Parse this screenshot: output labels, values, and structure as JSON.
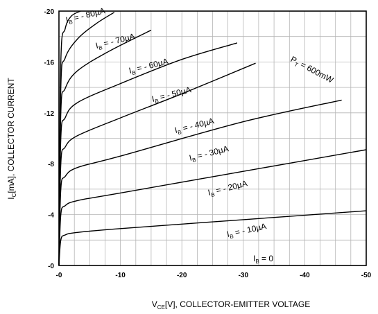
{
  "chart_data": {
    "type": "line",
    "xlabel": {
      "main": "V",
      "sub": "CE",
      "rest": "[V], COLLECTOR-EMITTER VOLTAGE"
    },
    "ylabel": {
      "main": "I",
      "sub": "C",
      "rest": "[mA], COLLECTOR CURRENT"
    },
    "xlim": [
      0,
      -50
    ],
    "ylim": [
      0,
      -20
    ],
    "x_ticks": [
      {
        "value": 0,
        "label": "-0"
      },
      {
        "value": -10,
        "label": "-10"
      },
      {
        "value": -20,
        "label": "-20"
      },
      {
        "value": -30,
        "label": "-30"
      },
      {
        "value": -40,
        "label": "-40"
      },
      {
        "value": -50,
        "label": "-50"
      }
    ],
    "y_ticks": [
      {
        "value": 0,
        "label": "-0"
      },
      {
        "value": -4,
        "label": "-4"
      },
      {
        "value": -8,
        "label": "-8"
      },
      {
        "value": -12,
        "label": "-12"
      },
      {
        "value": -16,
        "label": "-16"
      },
      {
        "value": -20,
        "label": "-20"
      }
    ],
    "grid": true,
    "series": [
      {
        "ib": -10,
        "label_pre": "I",
        "label_sub": "B",
        "label_post": " = - 10µA",
        "x": [
          0,
          -0.3,
          -1,
          -3,
          -10,
          -30,
          -50
        ],
        "y": [
          0,
          -2.0,
          -2.4,
          -2.6,
          -2.9,
          -3.6,
          -4.3
        ]
      },
      {
        "ib": -20,
        "label_pre": "I",
        "label_sub": "B",
        "label_post": " = - 20µA",
        "x": [
          0,
          -0.3,
          -1,
          -3,
          -10,
          -30,
          -50
        ],
        "y": [
          0,
          -4.0,
          -4.7,
          -5.1,
          -5.7,
          -7.4,
          -9.1
        ]
      },
      {
        "ib": -30,
        "label_pre": "I",
        "label_sub": "B",
        "label_post": " = - 30µA",
        "x": [
          0,
          -0.3,
          -1,
          -3,
          -10,
          -30,
          -46
        ],
        "y": [
          0,
          -6.0,
          -7.0,
          -7.7,
          -8.6,
          -11.3,
          -13.0
        ]
      },
      {
        "ib": -40,
        "label_pre": "I",
        "label_sub": "B",
        "label_post": " = - 40µA",
        "x": [
          0,
          -0.3,
          -1,
          -3,
          -10,
          -20,
          -32
        ],
        "y": [
          0,
          -8.0,
          -9.3,
          -10.2,
          -11.6,
          -13.5,
          -15.9
        ]
      },
      {
        "ib": -50,
        "label_pre": "I",
        "label_sub": "B",
        "label_post": " = - 50µA",
        "x": [
          0,
          -0.3,
          -1,
          -3,
          -10,
          -20,
          -29
        ],
        "y": [
          0,
          -10.0,
          -11.6,
          -12.8,
          -14.3,
          -16.2,
          -17.5
        ]
      },
      {
        "ib": -60,
        "label_pre": "I",
        "label_sub": "B",
        "label_post": " = - 60µA",
        "x": [
          0,
          -0.3,
          -1,
          -3,
          -8,
          -15
        ],
        "y": [
          0,
          -12.0,
          -13.9,
          -15.3,
          -16.8,
          -18.5
        ]
      },
      {
        "ib": -70,
        "label_pre": "I",
        "label_sub": "B",
        "label_post": " = - 70µA",
        "x": [
          0,
          -0.3,
          -1,
          -3,
          -6,
          -9
        ],
        "y": [
          0,
          -14.0,
          -16.3,
          -17.8,
          -19.0,
          -19.9
        ]
      },
      {
        "ib": -80,
        "label_pre": "I",
        "label_sub": "B",
        "label_post": " = - 80µA",
        "x": [
          0,
          -0.3,
          -1,
          -2,
          -3.5
        ],
        "y": [
          0,
          -16.0,
          -18.6,
          -19.6,
          -20.0
        ]
      }
    ],
    "zero_label": {
      "label_pre": "I",
      "label_sub": "B",
      "label_post": " = 0"
    },
    "pt_label": {
      "label_pre": "P",
      "label_sub": "T",
      "label_post": " = 600mW"
    }
  }
}
